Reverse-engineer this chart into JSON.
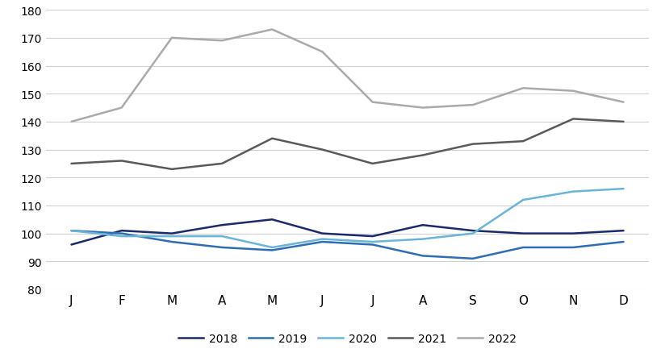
{
  "months": [
    "J",
    "F",
    "M",
    "A",
    "M",
    "J",
    "J",
    "A",
    "S",
    "O",
    "N",
    "D"
  ],
  "series": {
    "2018": [
      96,
      101,
      100,
      103,
      105,
      100,
      99,
      103,
      101,
      100,
      100,
      101
    ],
    "2019": [
      101,
      100,
      97,
      95,
      94,
      97,
      96,
      92,
      91,
      95,
      95,
      97
    ],
    "2020": [
      101,
      99,
      99,
      99,
      95,
      98,
      97,
      98,
      100,
      112,
      115,
      116
    ],
    "2021": [
      125,
      126,
      123,
      125,
      134,
      130,
      125,
      128,
      132,
      133,
      141,
      140
    ],
    "2022": [
      140,
      145,
      170,
      169,
      173,
      165,
      147,
      145,
      146,
      152,
      151,
      147
    ]
  },
  "colors": {
    "2018": "#1b2a6b",
    "2019": "#2e6db4",
    "2020": "#6ab4d8",
    "2021": "#5a5a5a",
    "2022": "#aaaaaa"
  },
  "ylim": [
    80,
    180
  ],
  "yticks": [
    80,
    90,
    100,
    110,
    120,
    130,
    140,
    150,
    160,
    170,
    180
  ],
  "background_color": "#ffffff",
  "grid_color": "#d0d0d0",
  "legend_labels": [
    "2018",
    "2019",
    "2020",
    "2021",
    "2022"
  ],
  "line_width": 1.8
}
